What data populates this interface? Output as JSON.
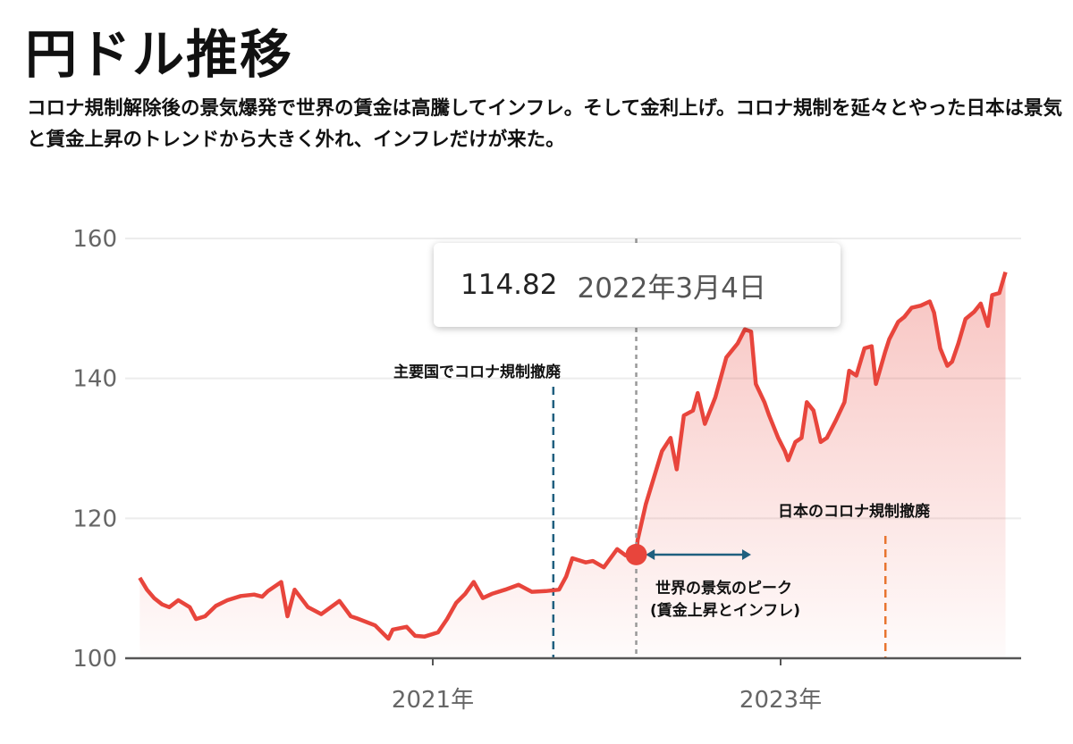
{
  "title": "円ドル推移",
  "subtitle": "コロナ規制解除後の景気爆発で世界の賃金は高騰してインフレ。そして金利上げ。コロナ規制を延々とやった日本は景気と賃金上昇のトレンドから大きく外れ、インフレだけが来た。",
  "tooltip": {
    "value": "114.82",
    "date": "2022年3月4日"
  },
  "colors": {
    "line": "#e8453c",
    "fill": "#e8453c",
    "blue_marker": "#1f5f7f",
    "orange_marker": "#e8742f",
    "grid": "#ececec",
    "axis": "#555555"
  },
  "chart_data": {
    "type": "area",
    "title": "",
    "xlabel": "",
    "ylabel": "",
    "ylim": [
      100,
      160
    ],
    "yticks": [
      "100",
      "120",
      "140",
      "160"
    ],
    "xticks": [
      {
        "date": "2021-01-01",
        "label": "2021年"
      },
      {
        "date": "2023-01-01",
        "label": "2023年"
      }
    ],
    "grid": true,
    "series": [
      {
        "points": [
          [
            "2019-04-27",
            111.5
          ],
          [
            "2019-05-12",
            109.8
          ],
          [
            "2019-05-27",
            108.6
          ],
          [
            "2019-06-13",
            107.7
          ],
          [
            "2019-06-28",
            107.3
          ],
          [
            "2019-07-17",
            108.3
          ],
          [
            "2019-08-10",
            107.3
          ],
          [
            "2019-08-23",
            105.6
          ],
          [
            "2019-09-11",
            106.0
          ],
          [
            "2019-10-04",
            107.5
          ],
          [
            "2019-10-28",
            108.3
          ],
          [
            "2019-11-25",
            108.9
          ],
          [
            "2019-12-23",
            109.1
          ],
          [
            "2020-01-09",
            108.8
          ],
          [
            "2020-01-21",
            109.6
          ],
          [
            "2020-02-18",
            110.9
          ],
          [
            "2020-03-02",
            106.0
          ],
          [
            "2020-03-17",
            109.8
          ],
          [
            "2020-04-14",
            107.3
          ],
          [
            "2020-05-12",
            106.3
          ],
          [
            "2020-06-19",
            108.2
          ],
          [
            "2020-07-13",
            106.0
          ],
          [
            "2020-07-26",
            105.7
          ],
          [
            "2020-09-02",
            104.7
          ],
          [
            "2020-09-30",
            102.8
          ],
          [
            "2020-10-09",
            104.1
          ],
          [
            "2020-11-07",
            104.5
          ],
          [
            "2020-11-25",
            103.2
          ],
          [
            "2020-12-15",
            103.1
          ],
          [
            "2021-01-12",
            103.7
          ],
          [
            "2021-01-31",
            105.6
          ],
          [
            "2021-02-19",
            107.9
          ],
          [
            "2021-03-10",
            109.2
          ],
          [
            "2021-03-28",
            110.9
          ],
          [
            "2021-04-16",
            108.6
          ],
          [
            "2021-05-05",
            109.2
          ],
          [
            "2021-06-02",
            109.8
          ],
          [
            "2021-06-30",
            110.5
          ],
          [
            "2021-07-28",
            109.5
          ],
          [
            "2021-08-26",
            109.6
          ],
          [
            "2021-09-23",
            109.8
          ],
          [
            "2021-10-08",
            111.7
          ],
          [
            "2021-10-21",
            114.3
          ],
          [
            "2021-11-18",
            113.7
          ],
          [
            "2021-12-03",
            113.9
          ],
          [
            "2021-12-26",
            113.0
          ],
          [
            "2022-01-23",
            115.6
          ],
          [
            "2022-02-10",
            114.7
          ],
          [
            "2022-03-04",
            114.82
          ],
          [
            "2022-03-07",
            116.9
          ],
          [
            "2022-03-24",
            122.0
          ],
          [
            "2022-04-27",
            129.6
          ],
          [
            "2022-05-15",
            131.5
          ],
          [
            "2022-05-28",
            127.0
          ],
          [
            "2022-06-12",
            134.7
          ],
          [
            "2022-07-01",
            135.4
          ],
          [
            "2022-07-11",
            137.9
          ],
          [
            "2022-07-26",
            133.5
          ],
          [
            "2022-08-17",
            137.3
          ],
          [
            "2022-09-09",
            143.0
          ],
          [
            "2022-10-03",
            145.0
          ],
          [
            "2022-10-18",
            147.0
          ],
          [
            "2022-10-31",
            146.7
          ],
          [
            "2022-11-10",
            139.2
          ],
          [
            "2022-11-28",
            136.6
          ],
          [
            "2022-12-08",
            134.7
          ],
          [
            "2022-12-27",
            131.5
          ],
          [
            "2023-01-10",
            129.6
          ],
          [
            "2023-01-17",
            128.3
          ],
          [
            "2023-02-01",
            130.9
          ],
          [
            "2023-02-14",
            131.5
          ],
          [
            "2023-02-25",
            136.6
          ],
          [
            "2023-03-11",
            135.4
          ],
          [
            "2023-03-26",
            130.9
          ],
          [
            "2023-04-08",
            131.5
          ],
          [
            "2023-04-27",
            134.0
          ],
          [
            "2023-05-15",
            136.6
          ],
          [
            "2023-05-25",
            141.1
          ],
          [
            "2023-06-09",
            140.4
          ],
          [
            "2023-06-26",
            144.3
          ],
          [
            "2023-07-11",
            144.6
          ],
          [
            "2023-07-20",
            139.2
          ],
          [
            "2023-08-08",
            143.7
          ],
          [
            "2023-08-17",
            145.6
          ],
          [
            "2023-09-05",
            148.1
          ],
          [
            "2023-09-18",
            148.8
          ],
          [
            "2023-10-03",
            150.1
          ],
          [
            "2023-10-22",
            150.4
          ],
          [
            "2023-11-10",
            151.0
          ],
          [
            "2023-11-19",
            149.4
          ],
          [
            "2023-12-02",
            144.3
          ],
          [
            "2023-12-17",
            141.8
          ],
          [
            "2023-12-27",
            142.4
          ],
          [
            "2024-01-09",
            145.0
          ],
          [
            "2024-01-24",
            148.5
          ],
          [
            "2024-02-11",
            149.5
          ],
          [
            "2024-02-25",
            150.7
          ],
          [
            "2024-03-11",
            147.5
          ],
          [
            "2024-03-20",
            151.9
          ],
          [
            "2024-04-04",
            152.2
          ],
          [
            "2024-04-17",
            155.2
          ]
        ]
      }
    ],
    "highlight": {
      "date": "2022-03-04",
      "value": 114.82
    },
    "annotations": [
      {
        "type": "vline",
        "date": "2021-09-11",
        "color": "#1f5f7f",
        "label": "主要国でコロナ規制撤廃"
      },
      {
        "type": "vline",
        "date": "2023-08-09",
        "color": "#e8742f",
        "label": "日本のコロナ規制撤廃"
      },
      {
        "type": "range-arrow",
        "from": "2022-03-24",
        "to": "2022-10-31",
        "color": "#1f5f7f",
        "label_line1": "世界の景気のピーク",
        "label_line2": "(賃金上昇とインフレ)"
      }
    ]
  }
}
